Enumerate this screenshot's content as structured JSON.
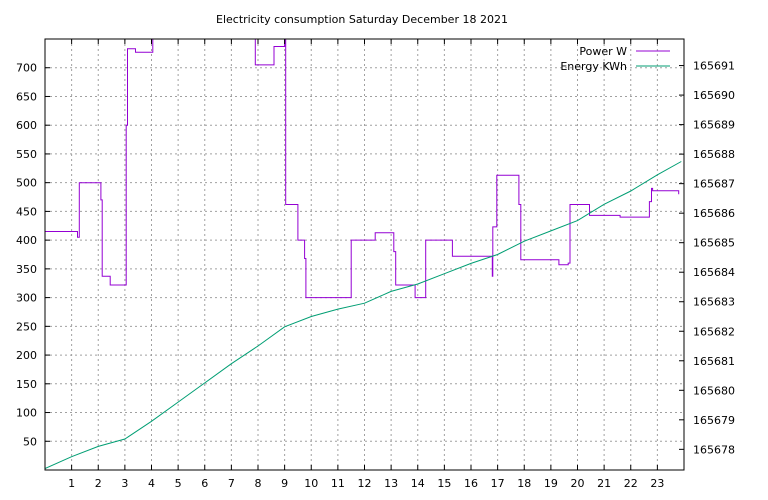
{
  "chart_data": {
    "type": "line",
    "title": "Electricity consumption Saturday December 18 2021",
    "x_ticks": [
      "1",
      "2",
      "3",
      "4",
      "5",
      "6",
      "7",
      "8",
      "9",
      "10",
      "11",
      "12",
      "13",
      "14",
      "15",
      "16",
      "17",
      "18",
      "19",
      "20",
      "21",
      "22",
      "23"
    ],
    "y_ticks": [
      "50",
      "100",
      "150",
      "200",
      "250",
      "300",
      "350",
      "400",
      "450",
      "500",
      "550",
      "600",
      "650",
      "700"
    ],
    "y2_ticks": [
      "165678",
      "165679",
      "165680",
      "165681",
      "165682",
      "165683",
      "165684",
      "165685",
      "165686",
      "165687",
      "165688",
      "165689",
      "165690",
      "165691"
    ],
    "xlim": [
      0,
      24
    ],
    "ylim": [
      0,
      750
    ],
    "y2lim": [
      165677.3,
      165691.9
    ],
    "grid": true,
    "legend_position": "top-right",
    "series": [
      {
        "name": "Power W",
        "axis": "left",
        "color": "#9400d3",
        "step": true,
        "points": [
          [
            0,
            415
          ],
          [
            1.22,
            415
          ],
          [
            1.22,
            405
          ],
          [
            1.29,
            405
          ],
          [
            1.29,
            500
          ],
          [
            2.1,
            500
          ],
          [
            2.1,
            470
          ],
          [
            2.15,
            470
          ],
          [
            2.15,
            337
          ],
          [
            2.45,
            337
          ],
          [
            2.45,
            322
          ],
          [
            3.05,
            322
          ],
          [
            3.05,
            600
          ],
          [
            3.1,
            600
          ],
          [
            3.1,
            733
          ],
          [
            3.4,
            733
          ],
          [
            3.4,
            727
          ],
          [
            4.05,
            727
          ],
          [
            4.05,
            750
          ],
          [
            7.9,
            750
          ],
          [
            7.9,
            705
          ],
          [
            8.6,
            705
          ],
          [
            8.6,
            737
          ],
          [
            9.0,
            737
          ],
          [
            9.0,
            750
          ],
          [
            9.04,
            750
          ],
          [
            9.04,
            462
          ],
          [
            9.5,
            462
          ],
          [
            9.5,
            400
          ],
          [
            9.75,
            400
          ],
          [
            9.75,
            368
          ],
          [
            9.8,
            368
          ],
          [
            9.8,
            300
          ],
          [
            11.5,
            300
          ],
          [
            11.5,
            400
          ],
          [
            12.4,
            400
          ],
          [
            12.4,
            413
          ],
          [
            13.1,
            413
          ],
          [
            13.1,
            380
          ],
          [
            13.17,
            380
          ],
          [
            13.17,
            322
          ],
          [
            13.9,
            322
          ],
          [
            13.9,
            300
          ],
          [
            14.3,
            300
          ],
          [
            14.3,
            400
          ],
          [
            15.3,
            400
          ],
          [
            15.3,
            372
          ],
          [
            16.8,
            372
          ],
          [
            16.8,
            337
          ],
          [
            16.82,
            337
          ],
          [
            16.82,
            423
          ],
          [
            16.97,
            423
          ],
          [
            16.97,
            513
          ],
          [
            17.8,
            513
          ],
          [
            17.8,
            462
          ],
          [
            17.87,
            462
          ],
          [
            17.87,
            366
          ],
          [
            19.3,
            366
          ],
          [
            19.3,
            357
          ],
          [
            19.65,
            357
          ],
          [
            19.65,
            360
          ],
          [
            19.72,
            360
          ],
          [
            19.72,
            462
          ],
          [
            20.45,
            462
          ],
          [
            20.45,
            443
          ],
          [
            21.6,
            443
          ],
          [
            21.6,
            440
          ],
          [
            22.7,
            440
          ],
          [
            22.7,
            467
          ],
          [
            22.78,
            467
          ],
          [
            22.78,
            490
          ],
          [
            22.82,
            490
          ],
          [
            22.82,
            486
          ],
          [
            23.8,
            486
          ],
          [
            23.8,
            480
          ]
        ]
      },
      {
        "name": "Energy KWh",
        "axis": "right",
        "color": "#009e73",
        "step": false,
        "points": [
          [
            0,
            165677.35
          ],
          [
            1.0,
            165677.75
          ],
          [
            2.0,
            165678.1
          ],
          [
            3.0,
            165678.35
          ],
          [
            4.0,
            165678.95
          ],
          [
            5.0,
            165679.6
          ],
          [
            6.0,
            165680.25
          ],
          [
            7.0,
            165680.9
          ],
          [
            8.0,
            165681.5
          ],
          [
            9.0,
            165682.15
          ],
          [
            10.0,
            165682.5
          ],
          [
            11.0,
            165682.75
          ],
          [
            12.0,
            165682.95
          ],
          [
            13.0,
            165683.35
          ],
          [
            14.0,
            165683.6
          ],
          [
            15.0,
            165683.95
          ],
          [
            16.0,
            165684.3
          ],
          [
            17.0,
            165684.6
          ],
          [
            18.0,
            165685.05
          ],
          [
            19.0,
            165685.4
          ],
          [
            20.0,
            165685.75
          ],
          [
            21.0,
            165686.3
          ],
          [
            22.0,
            165686.75
          ],
          [
            23.0,
            165687.3
          ],
          [
            23.9,
            165687.75
          ]
        ]
      }
    ]
  }
}
